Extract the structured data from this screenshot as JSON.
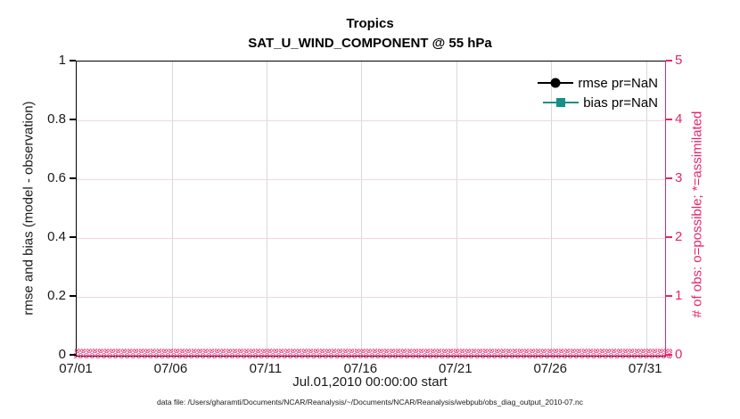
{
  "chart_data": {
    "type": "line",
    "title": "Tropics",
    "subtitle": "SAT_U_WIND_COMPONENT @ 55 hPa",
    "left_axis": {
      "label": "rmse and bias (model - observation)",
      "ticks": [
        "0",
        "0.2",
        "0.4",
        "0.6",
        "0.8",
        "1"
      ],
      "range": [
        0,
        1
      ],
      "color": "#1a1a1a"
    },
    "right_axis": {
      "label": "# of obs: o=possible; *=assimilated",
      "ticks": [
        "0",
        "1",
        "2",
        "3",
        "4",
        "5"
      ],
      "range": [
        0,
        5
      ],
      "color": "#e3266b"
    },
    "x_axis": {
      "label": "Jul.01,2010 00:00:00 start",
      "tick_labels": [
        "07/01",
        "07/06",
        "07/11",
        "07/16",
        "07/21",
        "07/26",
        "07/31"
      ],
      "tick_days": [
        0,
        5,
        10,
        15,
        20,
        25,
        30
      ],
      "range_days": [
        0,
        31
      ]
    },
    "series": [
      {
        "name": "rmse pr=NaN",
        "color": "#000000",
        "marker": "circle",
        "values": "NaN"
      },
      {
        "name": "bias pr=NaN",
        "color": "#178f89",
        "marker": "square",
        "values": "NaN"
      }
    ],
    "obs_counts": {
      "possible_marker": "o",
      "assimilated_marker": "*",
      "value": 0,
      "color": "#e3266b"
    },
    "grid": {
      "vertical_color": "#d9d9d9",
      "horizontal_color": "#f9d4e2"
    },
    "legend_position": "top-right",
    "footnote": "data file: /Users/gharamti/Documents/NCAR/Reanalysis/~/Documents/NCAR/Reanalysis/webpub/obs_diag_output_2010-07.nc"
  }
}
